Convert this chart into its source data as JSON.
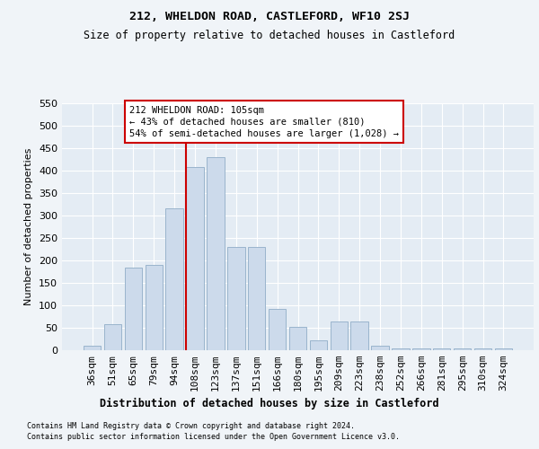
{
  "title1": "212, WHELDON ROAD, CASTLEFORD, WF10 2SJ",
  "title2": "Size of property relative to detached houses in Castleford",
  "xlabel": "Distribution of detached houses by size in Castleford",
  "ylabel": "Number of detached properties",
  "categories": [
    "36sqm",
    "51sqm",
    "65sqm",
    "79sqm",
    "94sqm",
    "108sqm",
    "123sqm",
    "137sqm",
    "151sqm",
    "166sqm",
    "180sqm",
    "195sqm",
    "209sqm",
    "223sqm",
    "238sqm",
    "252sqm",
    "266sqm",
    "281sqm",
    "295sqm",
    "310sqm",
    "324sqm"
  ],
  "values": [
    10,
    58,
    185,
    190,
    317,
    408,
    430,
    230,
    230,
    92,
    52,
    22,
    65,
    65,
    10,
    5,
    5,
    5,
    5,
    5,
    5
  ],
  "bar_color": "#ccdaeb",
  "bar_edge_color": "#9ab4cc",
  "ref_line_color": "#cc0000",
  "ref_line_index": 5,
  "annotation_text": "212 WHELDON ROAD: 105sqm\n← 43% of detached houses are smaller (810)\n54% of semi-detached houses are larger (1,028) →",
  "ylim": [
    0,
    550
  ],
  "yticks": [
    0,
    50,
    100,
    150,
    200,
    250,
    300,
    350,
    400,
    450,
    500,
    550
  ],
  "footnote1": "Contains HM Land Registry data © Crown copyright and database right 2024.",
  "footnote2": "Contains public sector information licensed under the Open Government Licence v3.0.",
  "bg_color": "#f0f4f8",
  "plot_bg_color": "#e4ecf4",
  "grid_color": "#ffffff",
  "title1_fontsize": 9.5,
  "title2_fontsize": 8.5
}
